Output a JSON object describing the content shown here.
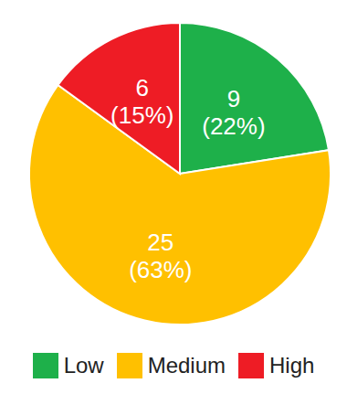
{
  "chart_data": {
    "type": "pie",
    "categories": [
      "Low",
      "Medium",
      "High"
    ],
    "values": [
      9,
      25,
      6
    ],
    "percent_labels": [
      "(22%)",
      "(63%)",
      "(15%)"
    ],
    "colors": [
      "#1eb04a",
      "#ffc000",
      "#ee1c25"
    ],
    "data_labels": true,
    "legend": "bottom"
  }
}
